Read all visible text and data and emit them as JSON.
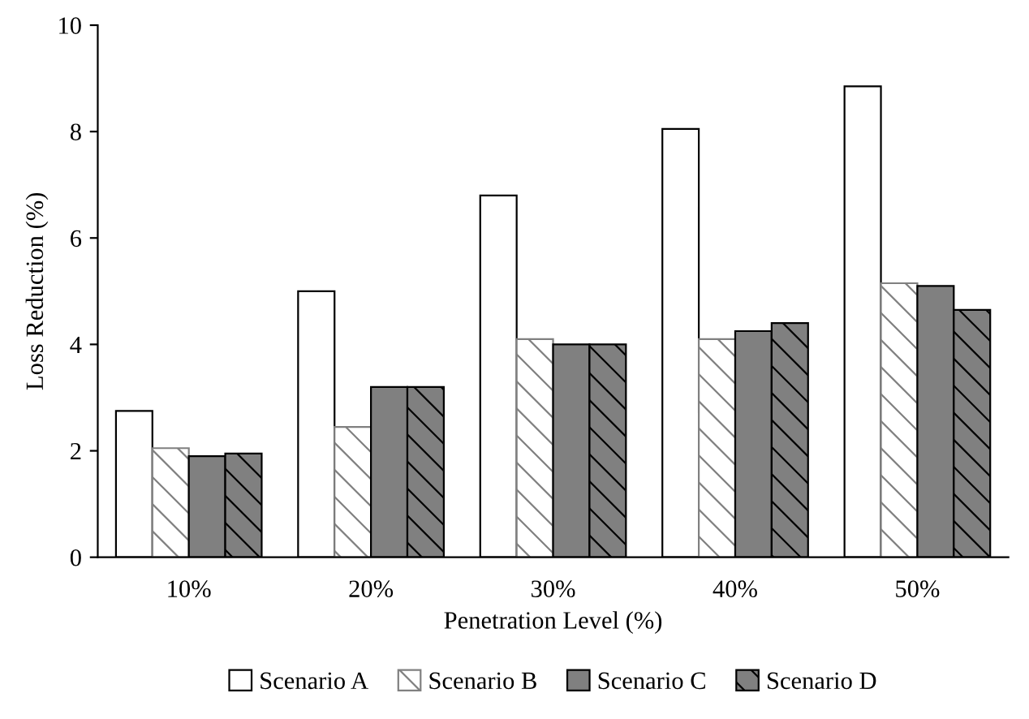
{
  "chart_data": {
    "type": "bar",
    "xlabel": "Penetration Level (%)",
    "ylabel": "Loss Reduction (%)",
    "categories": [
      "10%",
      "20%",
      "30%",
      "40%",
      "50%"
    ],
    "series": [
      {
        "name": "Scenario A",
        "color": "#ffffff",
        "values": [
          2.75,
          5.0,
          6.8,
          8.05,
          8.85
        ]
      },
      {
        "name": "Scenario B",
        "color": "#808080",
        "values": [
          2.05,
          2.45,
          4.1,
          4.1,
          5.15
        ]
      },
      {
        "name": "Scenario C",
        "color": "#808080",
        "values": [
          1.9,
          3.2,
          4.0,
          4.25,
          5.1
        ]
      },
      {
        "name": "Scenario D",
        "color": "#000000",
        "values": [
          1.95,
          3.2,
          4.0,
          4.4,
          4.65
        ]
      }
    ],
    "ylim": [
      0,
      10
    ],
    "yticks": [
      0,
      2,
      4,
      6,
      8,
      10
    ],
    "grid": false,
    "legend": "bottom"
  }
}
